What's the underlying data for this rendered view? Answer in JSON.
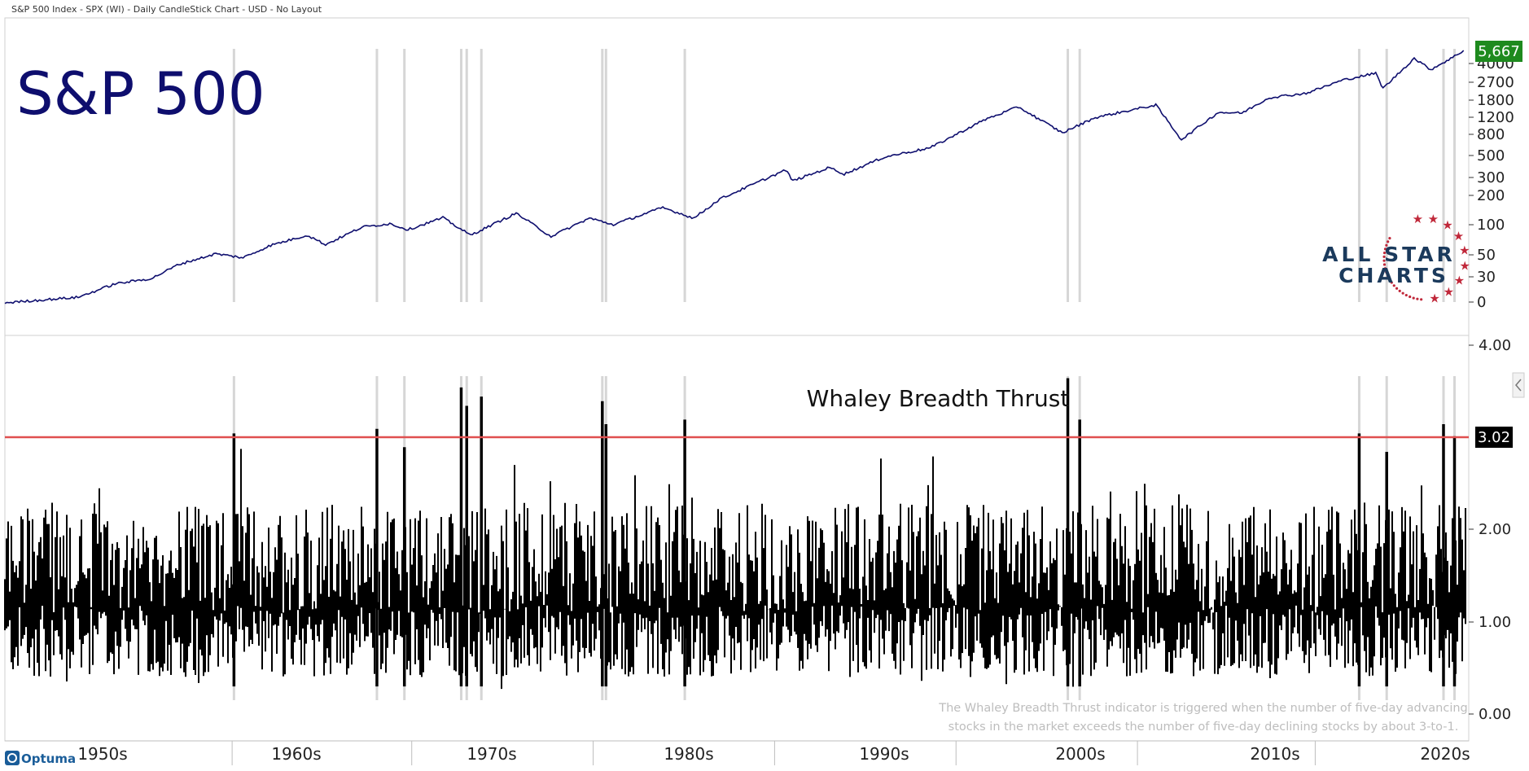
{
  "header": {
    "text": "S&P 500 Index - SPX (WI) - Daily CandleStick Chart - USD - No Layout"
  },
  "footer": {
    "brand": "Optuma"
  },
  "watermark": {
    "line1": "ALL STAR",
    "line2": "CHARTS"
  },
  "colors": {
    "price_line": "#0e0e6e",
    "breadth_bars": "#000000",
    "threshold_line": "#e05050",
    "last_price_tag": "#1e8a1e",
    "threshold_tag": "#000000",
    "signal_lines": "#d6d6d6",
    "title": "#0e0e6e"
  },
  "chart_data": [
    {
      "type": "line",
      "panel": "top",
      "title": "S&P 500",
      "scale": "log",
      "y_ticks": [
        "4000",
        "2700",
        "1800",
        "1200",
        "800",
        "500",
        "300",
        "200",
        "100",
        "50",
        "30",
        "0"
      ],
      "last_value_label": "5,667",
      "x_label_years": [
        1950,
        1960,
        1970,
        1980,
        1990,
        2000,
        2010,
        2020
      ],
      "x": [
        1945.0,
        1947.0,
        1949.0,
        1951.0,
        1953.0,
        1954.5,
        1956.5,
        1958.0,
        1959.5,
        1961.5,
        1962.5,
        1964.5,
        1966.0,
        1967.0,
        1968.9,
        1970.4,
        1972.9,
        1974.8,
        1976.9,
        1978.2,
        1980.9,
        1982.6,
        1984.0,
        1987.6,
        1988.0,
        1990.0,
        1990.8,
        1993.0,
        1995.5,
        1998.5,
        2000.3,
        2002.7,
        2004.5,
        2007.8,
        2009.2,
        2011.2,
        2012.5,
        2014.0,
        2016.0,
        2018.0,
        2019.8,
        2020.2,
        2021.9,
        2022.8,
        2024.0,
        2024.6
      ],
      "y": [
        14,
        15,
        16,
        22,
        25,
        35,
        45,
        41,
        55,
        70,
        56,
        85,
        92,
        80,
        106,
        70,
        118,
        68,
        105,
        90,
        135,
        105,
        165,
        330,
        255,
        350,
        300,
        450,
        560,
        1100,
        1480,
        800,
        1150,
        1550,
        680,
        1300,
        1280,
        1850,
        2050,
        2800,
        3300,
        2300,
        4700,
        3600,
        4800,
        5667
      ]
    },
    {
      "type": "bar",
      "panel": "bottom",
      "title": "Whaley Breadth Thrust",
      "y_ticks": [
        "4.00",
        "2.00",
        "1.00",
        "0.00"
      ],
      "ylim": [
        0.0,
        4.0
      ],
      "threshold": 3.02,
      "threshold_label": "3.02",
      "note": [
        "The Whaley Breadth Thrust indicator is triggered when the number of five-day advancing",
        "stocks in the market exceeds the number of five-day declining stocks by about 3-to-1."
      ],
      "signal_x": [
        1957.5,
        1965.3,
        1966.8,
        1969.9,
        1970.2,
        1971.0,
        1977.6,
        1977.8,
        1982.1,
        2003.0,
        2003.65,
        2018.9,
        2020.4,
        2023.5,
        2024.1
      ],
      "signal_peaks": [
        3.05,
        3.1,
        2.9,
        3.55,
        3.35,
        3.45,
        3.4,
        3.15,
        3.2,
        3.65,
        3.2,
        3.05,
        2.85,
        3.15,
        3.02
      ],
      "typical_range": [
        0.4,
        2.3
      ],
      "x_tick_labels": [
        "1950s",
        "1960s",
        "1970s",
        "1980s",
        "1990s",
        "2000s",
        "2010s",
        "2020s"
      ]
    }
  ]
}
